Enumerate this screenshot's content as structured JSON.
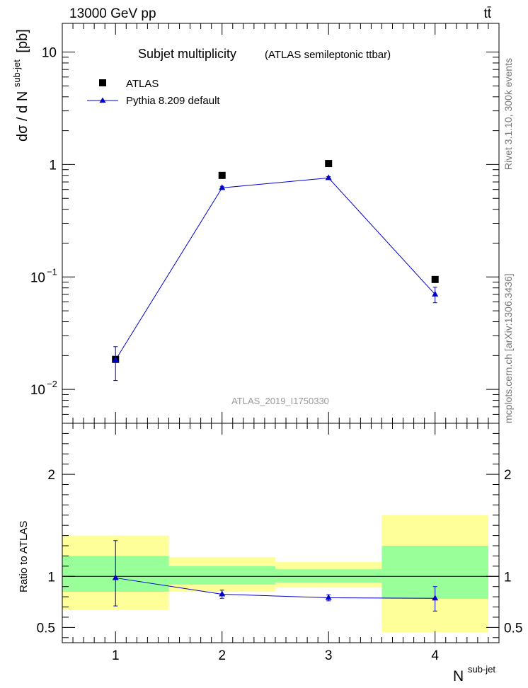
{
  "header": {
    "energy": "13000 GeV pp",
    "process": "tt̄"
  },
  "side_label": {
    "rivet": "Rivet 3.1.10,  300k events",
    "mcplots": "mcplots.cern.ch [arXiv:1306.3436]"
  },
  "chart_data": [
    {
      "type": "scatter",
      "panel": "main",
      "title": "Subjet multiplicity",
      "subtitle": "(ATLAS semileptonic ttbar)",
      "watermark": "ATLAS_2019_I1750330",
      "ylabel_prefix": "dσ / d N",
      "ylabel_sup": "sub-jet",
      "ylabel_suffix": "[pb]",
      "yscale": "log",
      "ylim": [
        0.005,
        18
      ],
      "xlim": [
        0.5,
        4.6
      ],
      "yticks": [
        {
          "v": 10,
          "base": "10",
          "exp": ""
        },
        {
          "v": 1,
          "base": "1",
          "exp": ""
        },
        {
          "v": 0.1,
          "base": "10",
          "exp": "−1"
        },
        {
          "v": 0.01,
          "base": "10",
          "exp": "−2"
        }
      ],
      "legend_position": "top-left",
      "series": [
        {
          "name": "ATLAS",
          "style": "square-marker",
          "color": "#000000",
          "x": [
            1,
            2,
            3,
            4
          ],
          "y": [
            0.0185,
            0.8,
            1.02,
            0.095
          ]
        },
        {
          "name": "Pythia 8.209 default",
          "style": "triangle-line",
          "color": "#0000cc",
          "x": [
            1,
            2,
            3,
            4
          ],
          "y": [
            0.0183,
            0.62,
            0.76,
            0.07
          ],
          "yerr_low": [
            0.012,
            0.6,
            0.74,
            0.059
          ],
          "yerr_high": [
            0.024,
            0.64,
            0.78,
            0.081
          ]
        }
      ]
    },
    {
      "type": "area",
      "panel": "ratio",
      "ylabel": "Ratio to ATLAS",
      "xlabel": "N",
      "xlabel_sup": "sub-jet",
      "xlim": [
        0.5,
        4.6
      ],
      "ylim": [
        0.35,
        2.5
      ],
      "xticks": [
        "1",
        "2",
        "3",
        "4"
      ],
      "yticks": [
        {
          "v": 0.5,
          "label": "0.5"
        },
        {
          "v": 1,
          "label": "1"
        },
        {
          "v": 2,
          "label": "2"
        }
      ],
      "bands": {
        "bins": [
          [
            0.5,
            1.5
          ],
          [
            1.5,
            2.5
          ],
          [
            2.5,
            3.5
          ],
          [
            3.5,
            4.5
          ]
        ],
        "yellow": [
          [
            0.67,
            1.4
          ],
          [
            0.85,
            1.19
          ],
          [
            0.89,
            1.14
          ],
          [
            0.45,
            1.6
          ]
        ],
        "green": [
          [
            0.85,
            1.2
          ],
          [
            0.92,
            1.1
          ],
          [
            0.94,
            1.07
          ],
          [
            0.78,
            1.3
          ]
        ],
        "yellow_color": "#ffff99",
        "green_color": "#99ff99"
      },
      "series": [
        {
          "name": "Pythia 8.209 default",
          "color": "#0000cc",
          "x": [
            1,
            2,
            3,
            4
          ],
          "y": [
            0.985,
            0.825,
            0.79,
            0.785
          ],
          "yerr_low": [
            0.71,
            0.785,
            0.76,
            0.66
          ],
          "yerr_high": [
            1.35,
            0.865,
            0.82,
            0.9
          ]
        }
      ]
    }
  ]
}
